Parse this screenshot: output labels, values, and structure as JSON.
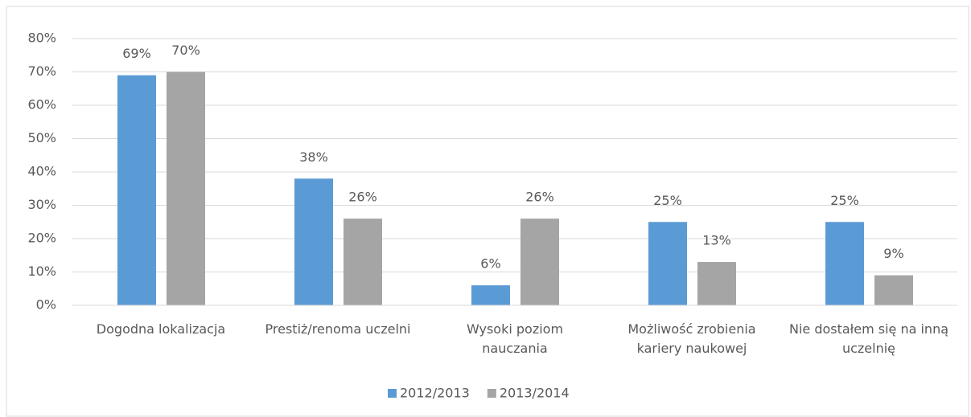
{
  "chart_data": {
    "type": "bar",
    "categories": [
      "Dogodna lokalizacja",
      "Prestiż/renoma uczelni",
      "Wysoki poziom nauczania",
      "Możliwość zrobienia kariery naukowej",
      "Nie dostałem się na inną uczelnię"
    ],
    "series": [
      {
        "name": "2012/2013",
        "color": "#5b9bd5",
        "values": [
          69,
          38,
          6,
          25,
          25
        ],
        "value_labels": [
          "69%",
          "38%",
          "6%",
          "25%",
          "25%"
        ]
      },
      {
        "name": "2013/2014",
        "color": "#a5a5a5",
        "values": [
          70,
          26,
          26,
          13,
          9
        ],
        "value_labels": [
          "70%",
          "26%",
          "26%",
          "13%",
          "9%"
        ]
      }
    ],
    "ylim": [
      0,
      80
    ],
    "yticks": [
      {
        "value": 0,
        "label": "0%"
      },
      {
        "value": 10,
        "label": "10%"
      },
      {
        "value": 20,
        "label": "20%"
      },
      {
        "value": 30,
        "label": "30%"
      },
      {
        "value": 40,
        "label": "40%"
      },
      {
        "value": 50,
        "label": "50%"
      },
      {
        "value": 60,
        "label": "60%"
      },
      {
        "value": 70,
        "label": "70%"
      },
      {
        "value": 80,
        "label": "80%"
      }
    ],
    "grid": true,
    "legend": "bottom"
  }
}
